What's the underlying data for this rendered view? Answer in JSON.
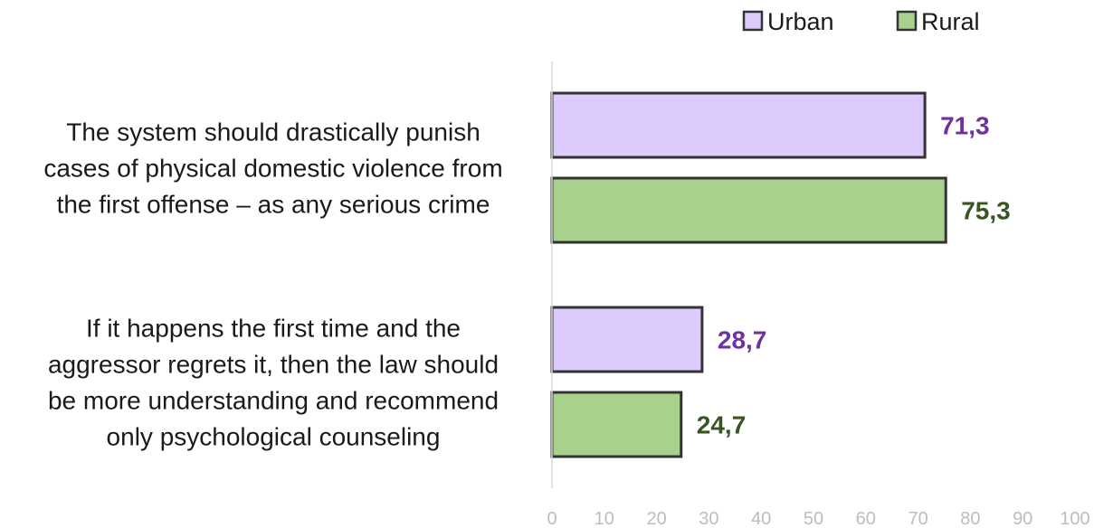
{
  "chart_data": {
    "type": "bar",
    "orientation": "horizontal",
    "categories": [
      [
        "The system should drastically punish",
        "cases of physical domestic violence from",
        "the first offense – as any serious crime"
      ],
      [
        "If it happens the first time and the",
        "aggressor regrets it, then the law should",
        "be more understanding and recommend",
        "only psychological counseling"
      ]
    ],
    "series": [
      {
        "name": "Urban",
        "values": [
          71.3,
          28.7
        ],
        "labels": [
          "71,3",
          "28,7"
        ],
        "color": "#dccbfc",
        "label_color": "#7030a0"
      },
      {
        "name": "Rural",
        "values": [
          75.3,
          24.7
        ],
        "labels": [
          "75,3",
          "24,7"
        ],
        "color": "#a9d18e",
        "label_color": "#375623"
      }
    ],
    "xlim": [
      0,
      100
    ],
    "xticks": [
      "0",
      "10",
      "20",
      "30",
      "40",
      "50",
      "60",
      "70",
      "80",
      "90",
      "100"
    ],
    "legend_position": "top-right",
    "grid": false,
    "bar_border_color": "#333333",
    "axis_color": "#d9d9d9"
  }
}
